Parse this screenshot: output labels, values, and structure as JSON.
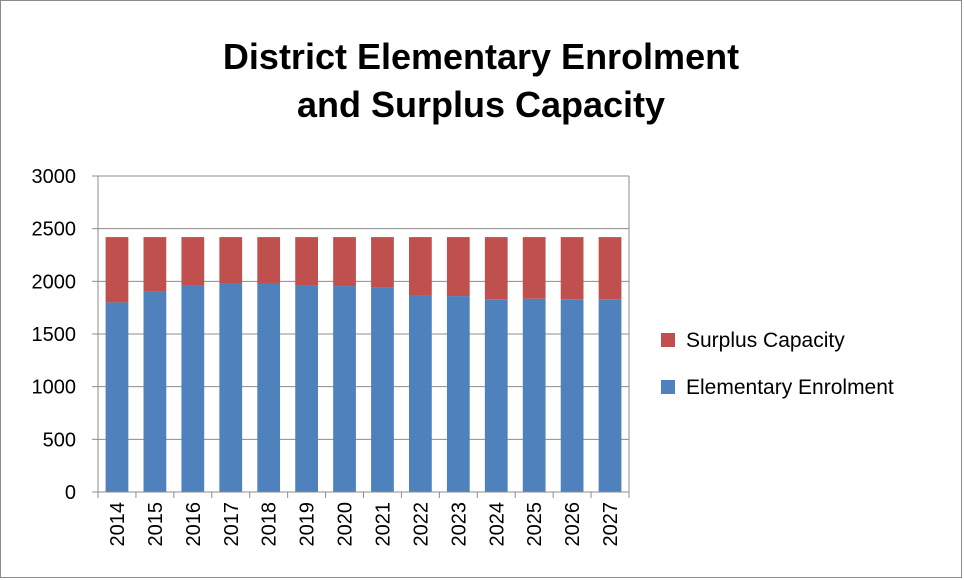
{
  "chart_data": {
    "type": "bar",
    "stacked": true,
    "title_line1": "District Elementary Enrolment",
    "title_line2": "and Surplus Capacity",
    "categories": [
      "2014",
      "2015",
      "2016",
      "2017",
      "2018",
      "2019",
      "2020",
      "2021",
      "2022",
      "2023",
      "2024",
      "2025",
      "2026",
      "2027"
    ],
    "series": [
      {
        "name": "Elementary Enrolment",
        "color": "#4f81bd",
        "values": [
          1800,
          1900,
          1965,
          1980,
          1975,
          1965,
          1955,
          1940,
          1870,
          1860,
          1830,
          1835,
          1830,
          1830
        ]
      },
      {
        "name": "Surplus Capacity",
        "color": "#c0504d",
        "values": [
          620,
          520,
          455,
          440,
          445,
          455,
          465,
          480,
          550,
          560,
          590,
          585,
          590,
          590
        ]
      }
    ],
    "ylim": [
      0,
      3000
    ],
    "yticks": [
      0,
      500,
      1000,
      1500,
      2000,
      2500,
      3000
    ],
    "grid": true,
    "legend_position": "right"
  }
}
